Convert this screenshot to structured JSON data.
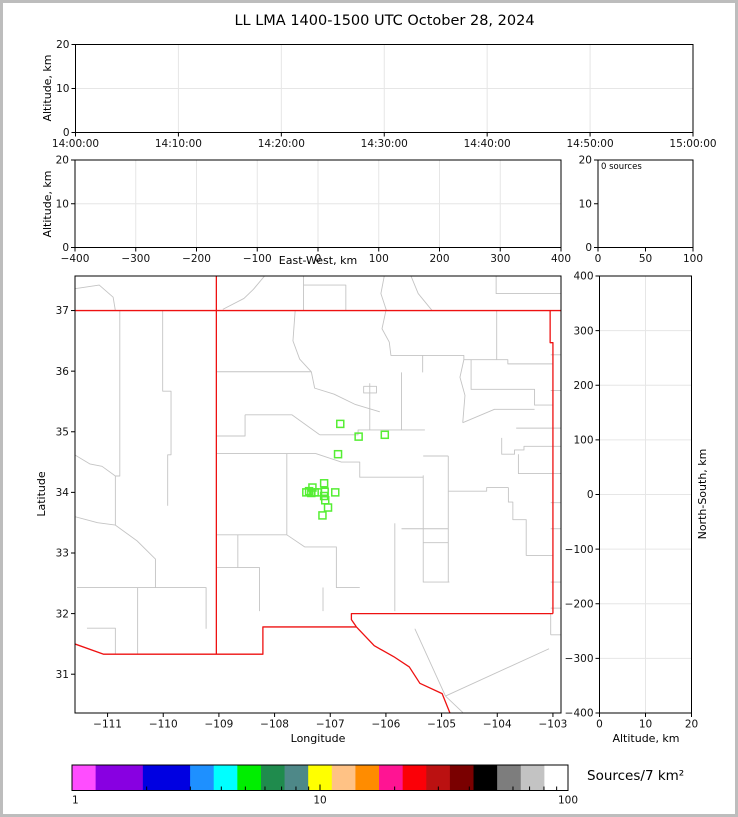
{
  "title": "LL LMA 1400-1500 UTC October 28, 2024",
  "colors": {
    "state_border_red": "#ee1111",
    "county_border_gray": "#c4c4c4",
    "station_green": "#55ee33",
    "gridline": "#e6e6e6",
    "frame_gray": "#bdbdbd"
  },
  "panels": {
    "time_altitude": {
      "ylabel": "Altitude, km",
      "yticks": [
        "0",
        "10",
        "20"
      ],
      "xticks": [
        "14:00:00",
        "14:10:00",
        "14:20:00",
        "14:30:00",
        "14:40:00",
        "14:50:00",
        "15:00:00"
      ]
    },
    "ew_altitude": {
      "ylabel": "Altitude, km",
      "xlabel": "East-West, km",
      "yticks": [
        "0",
        "10",
        "20"
      ],
      "xticks": [
        "−400",
        "−300",
        "−200",
        "−100",
        "0",
        "100",
        "200",
        "300",
        "400"
      ]
    },
    "alt_histogram": {
      "annotation": "0 sources",
      "yticks": [
        "0",
        "10",
        "20"
      ],
      "xticks": [
        "0",
        "50",
        "100"
      ]
    },
    "map": {
      "ylabel": "Latitude",
      "xlabel": "Longitude",
      "lat_tick_values": [
        31,
        32,
        33,
        34,
        35,
        36,
        37
      ],
      "lat_tick_labels": [
        "31",
        "32",
        "33",
        "34",
        "35",
        "36",
        "37"
      ],
      "lon_tick_values": [
        -111,
        -110,
        -109,
        -108,
        -107,
        -106,
        -105,
        -104,
        -103
      ],
      "lon_tick_labels": [
        "−111",
        "−110",
        "−109",
        "−108",
        "−107",
        "−106",
        "−105",
        "−104",
        "−103"
      ]
    },
    "ns_altitude": {
      "ylabel": "North-South, km",
      "xlabel": "Altitude, km",
      "ytick_values": [
        400,
        300,
        200,
        100,
        0,
        -100,
        -200,
        -300,
        -400
      ],
      "ytick_labels": [
        "400",
        "300",
        "200",
        "100",
        "0",
        "−100",
        "−200",
        "−300",
        "−400"
      ],
      "xticks": [
        "0",
        "10",
        "20"
      ]
    },
    "colorbar": {
      "label": "Sources/7 km²",
      "tick_labels": [
        "1",
        "10",
        "100"
      ]
    }
  },
  "chart_data": {
    "type": "scatter",
    "title": "LL LMA 1400-1500 UTC October 28, 2024",
    "xlabel": "Longitude",
    "ylabel": "Latitude",
    "lon_range": [
      -111.585,
      -102.855
    ],
    "lat_range": [
      30.36,
      37.57
    ],
    "altitude_km_range": [
      0,
      20
    ],
    "ew_km_range": [
      -400,
      400
    ],
    "ns_km_range": [
      -400,
      400
    ],
    "histogram_sources_range": [
      0,
      100
    ],
    "source_count_label": "0 sources",
    "colorbar": {
      "scale": "log",
      "min": 1,
      "max": 100,
      "label": "Sources/7 km²",
      "segment_colors": [
        "#ff4dff",
        "#8800e1",
        "#8800e1",
        "#0000e1",
        "#0000e1",
        "#1e90ff",
        "#00ffff",
        "#00ee00",
        "#1f8b4d",
        "#4e8888",
        "#ffff00",
        "#ffc285",
        "#ff8c00",
        "#ff1493",
        "#fb0007",
        "#bb1111",
        "#7a0000",
        "#000000",
        "#7d7d7d",
        "#c3c3c3",
        "#ffffff"
      ]
    },
    "stations_latlon": [
      [
        35.13,
        -106.82
      ],
      [
        34.92,
        -106.49
      ],
      [
        34.95,
        -106.02
      ],
      [
        34.63,
        -106.86
      ],
      [
        34.15,
        -107.11
      ],
      [
        34.08,
        -107.32
      ],
      [
        34.02,
        -107.38
      ],
      [
        34.0,
        -107.43
      ],
      [
        33.99,
        -107.34
      ],
      [
        34.0,
        -107.28
      ],
      [
        34.0,
        -107.22
      ],
      [
        34.01,
        -107.1
      ],
      [
        34.0,
        -106.91
      ],
      [
        33.94,
        -107.11
      ],
      [
        33.87,
        -107.09
      ],
      [
        33.75,
        -107.04
      ],
      [
        33.62,
        -107.14
      ]
    ],
    "state_borders": [
      [
        [
          -111.585,
          37.0
        ],
        [
          -102.855,
          37.0
        ]
      ],
      [
        [
          -109.046,
          37.57
        ],
        [
          -109.046,
          31.33
        ]
      ],
      [
        [
          -103.05,
          37.0
        ],
        [
          -103.05,
          36.47
        ],
        [
          -103.0,
          36.47
        ],
        [
          -103.0,
          32.0
        ]
      ],
      [
        [
          -103.0,
          32.0
        ],
        [
          -106.62,
          32.0
        ],
        [
          -106.62,
          31.9
        ],
        [
          -106.53,
          31.78
        ]
      ],
      [
        [
          -106.53,
          31.78
        ],
        [
          -108.21,
          31.78
        ],
        [
          -108.21,
          31.33
        ],
        [
          -111.07,
          31.33
        ],
        [
          -111.59,
          31.5
        ]
      ],
      [
        [
          -106.53,
          31.78
        ],
        [
          -106.21,
          31.47
        ],
        [
          -105.86,
          31.29
        ],
        [
          -105.58,
          31.12
        ],
        [
          -105.39,
          30.85
        ],
        [
          -104.99,
          30.68
        ],
        [
          -104.85,
          30.36
        ]
      ]
    ],
    "county_borders": [
      [
        [
          -110.78,
          37.0
        ],
        [
          -110.78,
          34.27
        ],
        [
          -110.86,
          34.27
        ],
        [
          -110.86,
          33.46
        ]
      ],
      [
        [
          -110.01,
          37.0
        ],
        [
          -110.01,
          35.67
        ],
        [
          -109.86,
          35.67
        ],
        [
          -109.86,
          34.62
        ],
        [
          -109.92,
          34.62
        ],
        [
          -109.92,
          33.78
        ]
      ],
      [
        [
          -111.59,
          33.6
        ],
        [
          -111.18,
          33.5
        ],
        [
          -110.86,
          33.46
        ],
        [
          -110.47,
          33.2
        ],
        [
          -110.14,
          32.9
        ],
        [
          -110.14,
          32.43
        ]
      ],
      [
        [
          -111.55,
          32.43
        ],
        [
          -109.23,
          32.43
        ],
        [
          -109.23,
          31.75
        ]
      ],
      [
        [
          -110.46,
          32.43
        ],
        [
          -110.46,
          31.34
        ]
      ],
      [
        [
          -111.37,
          31.76
        ],
        [
          -110.86,
          31.76
        ],
        [
          -110.86,
          31.34
        ]
      ],
      [
        [
          -111.59,
          34.62
        ],
        [
          -111.32,
          34.47
        ],
        [
          -111.1,
          34.43
        ],
        [
          -110.86,
          34.27
        ]
      ],
      [
        [
          -111.59,
          37.36
        ],
        [
          -111.15,
          37.42
        ],
        [
          -110.9,
          37.22
        ],
        [
          -110.86,
          37.0
        ]
      ],
      [
        [
          -108.18,
          37.57
        ],
        [
          -108.38,
          37.35
        ],
        [
          -108.55,
          37.2
        ],
        [
          -108.93,
          37.02
        ]
      ],
      [
        [
          -107.48,
          37.57
        ],
        [
          -107.48,
          37.0
        ]
      ],
      [
        [
          -107.48,
          37.42
        ],
        [
          -106.72,
          37.42
        ],
        [
          -106.72,
          37.0
        ]
      ],
      [
        [
          -106.03,
          37.57
        ],
        [
          -106.09,
          37.28
        ],
        [
          -105.99,
          37.0
        ]
      ],
      [
        [
          -105.55,
          37.57
        ],
        [
          -105.42,
          37.28
        ],
        [
          -105.17,
          37.0
        ]
      ],
      [
        [
          -104.02,
          37.57
        ],
        [
          -104.02,
          37.28
        ],
        [
          -102.86,
          37.28
        ]
      ],
      [
        [
          -109.05,
          35.99
        ],
        [
          -107.34,
          35.99
        ]
      ],
      [
        [
          -107.63,
          37.0
        ],
        [
          -107.67,
          36.5
        ],
        [
          -107.55,
          36.2
        ],
        [
          -107.34,
          35.99
        ]
      ],
      [
        [
          -107.34,
          35.99
        ],
        [
          -107.28,
          35.72
        ],
        [
          -106.93,
          35.62
        ],
        [
          -106.55,
          35.45
        ],
        [
          -106.11,
          35.33
        ]
      ],
      [
        [
          -106.0,
          37.0
        ],
        [
          -106.07,
          36.7
        ],
        [
          -105.94,
          36.48
        ],
        [
          -105.91,
          36.26
        ],
        [
          -105.34,
          36.26
        ],
        [
          -105.34,
          35.98
        ]
      ],
      [
        [
          -105.34,
          36.26
        ],
        [
          -104.6,
          36.26
        ],
        [
          -104.6,
          36.19
        ],
        [
          -104.01,
          36.19
        ],
        [
          -103.81,
          36.19
        ],
        [
          -103.81,
          36.12
        ],
        [
          -103.0,
          36.12
        ]
      ],
      [
        [
          -104.01,
          37.0
        ],
        [
          -104.01,
          36.19
        ]
      ],
      [
        [
          -104.6,
          36.19
        ],
        [
          -104.67,
          35.9
        ],
        [
          -104.58,
          35.6
        ],
        [
          -104.62,
          35.15
        ]
      ],
      [
        [
          -104.47,
          36.19
        ],
        [
          -104.47,
          35.7
        ],
        [
          -103.33,
          35.7
        ],
        [
          -103.33,
          35.44
        ],
        [
          -103.0,
          35.44
        ]
      ],
      [
        [
          -104.62,
          35.15
        ],
        [
          -104.05,
          35.37
        ],
        [
          -103.33,
          35.37
        ]
      ],
      [
        [
          -106.4,
          35.75
        ],
        [
          -106.17,
          35.75
        ],
        [
          -106.17,
          35.64
        ],
        [
          -106.4,
          35.64
        ],
        [
          -106.4,
          35.75
        ]
      ],
      [
        [
          -105.72,
          35.98
        ],
        [
          -105.72,
          35.03
        ]
      ],
      [
        [
          -108.53,
          35.28
        ],
        [
          -107.69,
          35.28
        ],
        [
          -107.19,
          34.95
        ]
      ],
      [
        [
          -108.53,
          35.28
        ],
        [
          -108.53,
          34.93
        ],
        [
          -109.05,
          34.93
        ]
      ],
      [
        [
          -107.19,
          34.95
        ],
        [
          -106.5,
          34.95
        ],
        [
          -106.5,
          35.03
        ],
        [
          -105.3,
          35.03
        ]
      ],
      [
        [
          -106.29,
          35.8
        ],
        [
          -106.29,
          35.03
        ]
      ],
      [
        [
          -109.05,
          34.64
        ],
        [
          -107.26,
          34.64
        ],
        [
          -106.8,
          34.5
        ],
        [
          -106.47,
          34.5
        ],
        [
          -106.47,
          34.25
        ],
        [
          -105.33,
          34.25
        ]
      ],
      [
        [
          -107.78,
          34.64
        ],
        [
          -107.78,
          33.3
        ]
      ],
      [
        [
          -109.05,
          33.3
        ],
        [
          -107.78,
          33.3
        ]
      ],
      [
        [
          -107.78,
          33.3
        ],
        [
          -107.46,
          33.1
        ],
        [
          -106.89,
          33.1
        ],
        [
          -106.89,
          32.43
        ],
        [
          -106.47,
          32.43
        ]
      ],
      [
        [
          -105.33,
          34.28
        ],
        [
          -105.33,
          32.52
        ],
        [
          -104.86,
          32.52
        ]
      ],
      [
        [
          -105.33,
          33.17
        ],
        [
          -104.88,
          33.17
        ]
      ],
      [
        [
          -104.88,
          34.6
        ],
        [
          -104.88,
          32.52
        ]
      ],
      [
        [
          -105.33,
          34.6
        ],
        [
          -104.88,
          34.6
        ]
      ],
      [
        [
          -104.88,
          34.02
        ],
        [
          -104.19,
          34.02
        ],
        [
          -104.19,
          34.08
        ],
        [
          -103.8,
          34.08
        ]
      ],
      [
        [
          -103.8,
          34.08
        ],
        [
          -103.8,
          33.84
        ],
        [
          -103.72,
          33.84
        ],
        [
          -103.72,
          33.55
        ],
        [
          -103.48,
          33.55
        ],
        [
          -103.48,
          32.96
        ],
        [
          -103.0,
          32.96
        ]
      ],
      [
        [
          -105.72,
          33.4
        ],
        [
          -104.88,
          33.4
        ]
      ],
      [
        [
          -105.84,
          33.49
        ],
        [
          -105.84,
          32.04
        ]
      ],
      [
        [
          -108.66,
          33.3
        ],
        [
          -108.66,
          32.76
        ],
        [
          -108.27,
          32.76
        ],
        [
          -108.27,
          32.04
        ]
      ],
      [
        [
          -109.05,
          32.76
        ],
        [
          -108.66,
          32.76
        ]
      ],
      [
        [
          -107.13,
          32.43
        ],
        [
          -107.13,
          32.04
        ]
      ],
      [
        [
          -103.92,
          34.9
        ],
        [
          -103.92,
          34.63
        ],
        [
          -103.69,
          34.63
        ],
        [
          -103.69,
          34.7
        ],
        [
          -103.52,
          34.7
        ],
        [
          -103.52,
          34.76
        ],
        [
          -102.86,
          34.76
        ]
      ],
      [
        [
          -103.62,
          34.63
        ],
        [
          -103.62,
          34.31
        ],
        [
          -102.86,
          34.31
        ]
      ],
      [
        [
          -103.66,
          35.06
        ],
        [
          -102.86,
          35.06
        ]
      ],
      [
        [
          -103.04,
          36.27
        ],
        [
          -102.86,
          36.27
        ]
      ],
      [
        [
          -103.04,
          35.68
        ],
        [
          -102.86,
          35.68
        ]
      ],
      [
        [
          -103.04,
          33.83
        ],
        [
          -102.86,
          33.83
        ]
      ],
      [
        [
          -103.04,
          33.4
        ],
        [
          -102.86,
          33.4
        ]
      ],
      [
        [
          -103.04,
          32.52
        ],
        [
          -102.86,
          32.52
        ]
      ],
      [
        [
          -103.04,
          32.09
        ],
        [
          -102.86,
          32.09
        ]
      ],
      [
        [
          -103.04,
          31.65
        ],
        [
          -102.86,
          31.65
        ]
      ],
      [
        [
          -103.04,
          32.0
        ],
        [
          -103.04,
          31.65
        ]
      ],
      [
        [
          -105.48,
          31.75
        ],
        [
          -104.93,
          30.64
        ]
      ],
      [
        [
          -104.93,
          30.64
        ],
        [
          -103.07,
          31.42
        ]
      ],
      [
        [
          -104.93,
          30.64
        ],
        [
          -104.62,
          30.37
        ]
      ]
    ]
  }
}
